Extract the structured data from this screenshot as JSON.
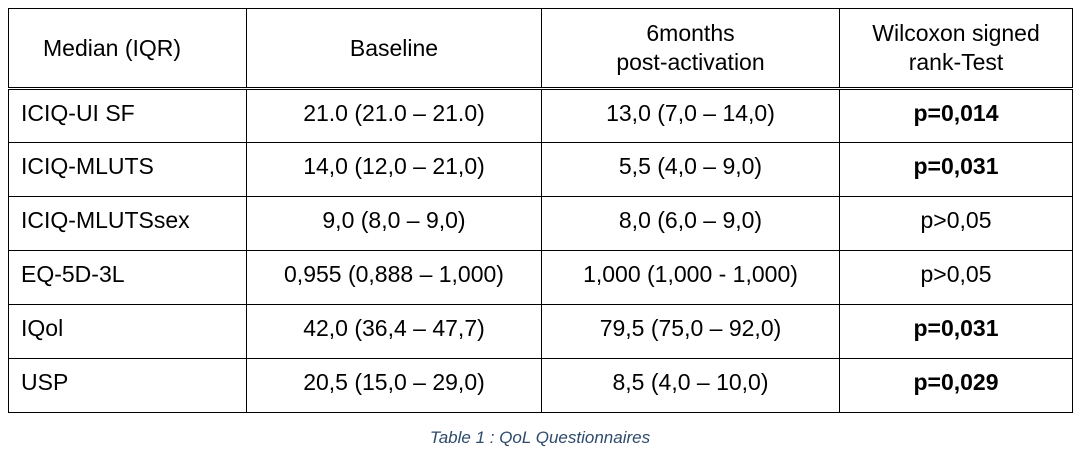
{
  "table": {
    "headers": [
      {
        "lines": [
          "Median (IQR)"
        ]
      },
      {
        "lines": [
          "Baseline"
        ]
      },
      {
        "lines": [
          "6months",
          "post-activation"
        ]
      },
      {
        "lines": [
          "Wilcoxon signed",
          "rank-Test"
        ]
      }
    ],
    "rows": [
      {
        "label": "ICIQ-UI SF",
        "baseline": "21.0 (21.0 – 21.0)",
        "post": "13,0 (7,0 – 14,0)",
        "test": "p=0,014",
        "significant": true
      },
      {
        "label": "ICIQ-MLUTS",
        "baseline": "14,0 (12,0 – 21,0)",
        "post": "5,5 (4,0 – 9,0)",
        "test": "p=0,031",
        "significant": true
      },
      {
        "label": "ICIQ-MLUTSsex",
        "baseline": "9,0 (8,0 – 9,0)",
        "post": "8,0 (6,0 – 9,0)",
        "test": "p>0,05",
        "significant": false
      },
      {
        "label": "EQ-5D-3L",
        "baseline": "0,955 (0,888 – 1,000)",
        "post": "1,000 (1,000 - 1,000)",
        "test": "p>0,05",
        "significant": false
      },
      {
        "label": "IQol",
        "baseline": "42,0 (36,4 – 47,7)",
        "post": "79,5 (75,0 – 92,0)",
        "test": "p=0,031",
        "significant": true
      },
      {
        "label": "USP",
        "baseline": "20,5 (15,0 – 29,0)",
        "post": "8,5 (4,0 – 10,0)",
        "test": "p=0,029",
        "significant": true
      }
    ]
  },
  "caption": "Table 1 : QoL Questionnaires",
  "colors": {
    "caption": "#2e4a6b",
    "border": "#000000"
  }
}
